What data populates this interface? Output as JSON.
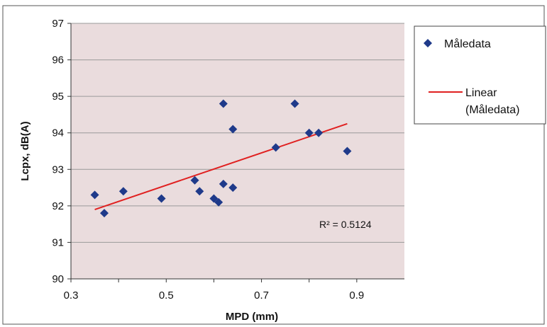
{
  "chart_data": {
    "type": "scatter",
    "xlabel": "MPD (mm)",
    "ylabel": "Lcpx, dB(A)",
    "xlim": [
      0.3,
      1.0
    ],
    "ylim": [
      90,
      97
    ],
    "x_ticks": [
      "0.3",
      "0.5",
      "0.7",
      "0.9"
    ],
    "y_ticks": [
      "90",
      "91",
      "92",
      "93",
      "94",
      "95",
      "96",
      "97"
    ],
    "grid": "horizontal",
    "legend_position": "right",
    "series": [
      {
        "name": "Måledata",
        "color": "#1f3a8a",
        "marker": "diamond",
        "points": [
          {
            "x": 0.35,
            "y": 92.3
          },
          {
            "x": 0.37,
            "y": 91.8
          },
          {
            "x": 0.41,
            "y": 92.4
          },
          {
            "x": 0.49,
            "y": 92.2
          },
          {
            "x": 0.56,
            "y": 92.7
          },
          {
            "x": 0.57,
            "y": 92.4
          },
          {
            "x": 0.6,
            "y": 92.2
          },
          {
            "x": 0.61,
            "y": 92.1
          },
          {
            "x": 0.62,
            "y": 92.6
          },
          {
            "x": 0.62,
            "y": 94.8
          },
          {
            "x": 0.64,
            "y": 94.1
          },
          {
            "x": 0.64,
            "y": 92.5
          },
          {
            "x": 0.73,
            "y": 93.6
          },
          {
            "x": 0.77,
            "y": 94.8
          },
          {
            "x": 0.8,
            "y": 94.0
          },
          {
            "x": 0.82,
            "y": 94.0
          },
          {
            "x": 0.88,
            "y": 93.5
          }
        ]
      }
    ],
    "trendline": {
      "name": "Linear (Måledata)",
      "color": "#e02020",
      "x": [
        0.35,
        0.88
      ],
      "y": [
        91.9,
        94.25
      ]
    },
    "annotation": "R² = 0.5124"
  },
  "colors": {
    "plot_background": "#eadcdd",
    "gridline": "#9a9a9a",
    "marker": "#1f3a8a",
    "trendline": "#e02020"
  }
}
